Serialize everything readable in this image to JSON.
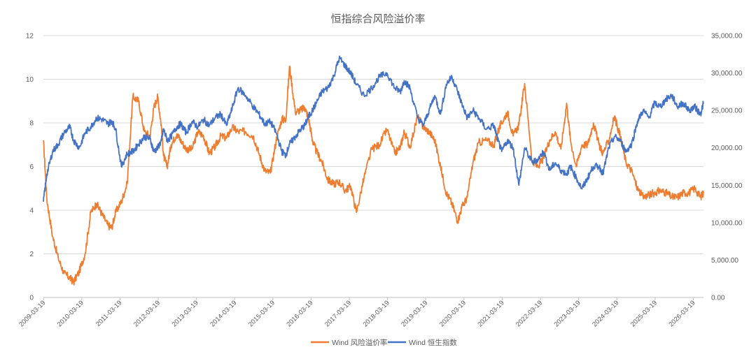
{
  "chart_data": {
    "type": "line",
    "title": "恒指综合风险溢价率",
    "y_left": {
      "min": 0,
      "max": 12,
      "ticks": [
        "0",
        "2",
        "4",
        "6",
        "8",
        "10",
        "12"
      ]
    },
    "y_right": {
      "min": 0,
      "max": 35000,
      "ticks": [
        "0.00",
        "5,000.00",
        "10,000.00",
        "15,000.00",
        "20,000.00",
        "25,000.00",
        "30,000.00",
        "35,000.00"
      ]
    },
    "x_ticks": [
      "2009-03-19",
      "2010-03-19",
      "2011-03-19",
      "2012-03-19",
      "2013-03-19",
      "2014-03-19",
      "2015-03-19",
      "2016-03-19",
      "2017-03-19",
      "2018-03-19",
      "2019-03-19",
      "2020-03-19",
      "2021-03-19",
      "2022-03-19",
      "2023-03-19",
      "2024-03-19",
      "2025-03-19",
      "2026-03-19"
    ],
    "x_range": [
      2009.21,
      2026.48
    ],
    "legend_position": "bottom",
    "grid": true,
    "series": [
      {
        "name": "Wind 风险溢价率",
        "axis": "left",
        "color": "#ED7D31",
        "x": [
          2009.21,
          2009.3,
          2009.45,
          2009.6,
          2009.75,
          2009.9,
          2010.0,
          2010.15,
          2010.3,
          2010.45,
          2010.6,
          2010.75,
          2010.9,
          2011.0,
          2011.1,
          2011.25,
          2011.4,
          2011.55,
          2011.7,
          2011.85,
          2012.0,
          2012.1,
          2012.2,
          2012.3,
          2012.35,
          2012.45,
          2012.55,
          2012.7,
          2012.8,
          2012.95,
          2013.1,
          2013.25,
          2013.4,
          2013.55,
          2013.7,
          2013.85,
          2014.0,
          2014.15,
          2014.3,
          2014.5,
          2014.7,
          2014.85,
          2015.0,
          2015.15,
          2015.3,
          2015.45,
          2015.55,
          2015.65,
          2015.8,
          2015.95,
          2016.05,
          2016.15,
          2016.25,
          2016.35,
          2016.5,
          2016.65,
          2016.8,
          2016.95,
          2017.1,
          2017.25,
          2017.4,
          2017.6,
          2017.8,
          2018.0,
          2018.2,
          2018.4,
          2018.55,
          2018.65,
          2018.8,
          2019.0,
          2019.15,
          2019.3,
          2019.45,
          2019.6,
          2019.75,
          2019.9,
          2020.05,
          2020.15,
          2020.3,
          2020.45,
          2020.6,
          2020.8,
          2021.0,
          2021.1,
          2021.2,
          2021.35,
          2021.5,
          2021.65,
          2021.8,
          2022.0,
          2022.15,
          2022.3,
          2022.45,
          2022.6,
          2022.75,
          2022.9,
          2023.0,
          2023.15,
          2023.3,
          2023.45,
          2023.6,
          2023.75,
          2023.85,
          2024.0,
          2024.15,
          2024.3,
          2024.45,
          2024.6,
          2024.75,
          2024.9,
          2025.05,
          2025.2,
          2025.35,
          2025.5,
          2025.65,
          2025.8,
          2025.95,
          2026.1,
          2026.25,
          2026.4,
          2026.48
        ],
        "y": [
          7.2,
          4.5,
          2.8,
          1.8,
          1.1,
          0.9,
          0.7,
          1.2,
          2.0,
          3.9,
          4.3,
          3.8,
          3.3,
          3.2,
          3.9,
          4.4,
          5.2,
          9.2,
          9.0,
          7.6,
          7.4,
          8.7,
          9.2,
          7.8,
          6.5,
          6.0,
          7.0,
          7.5,
          7.2,
          6.8,
          6.8,
          7.6,
          7.4,
          6.6,
          6.9,
          7.4,
          7.3,
          7.8,
          7.6,
          7.6,
          7.4,
          6.6,
          5.8,
          5.7,
          7.2,
          8.2,
          8.1,
          10.6,
          8.5,
          8.6,
          8.7,
          8.2,
          7.2,
          6.7,
          6.2,
          5.4,
          5.2,
          5.3,
          4.9,
          5.1,
          3.9,
          5.5,
          6.8,
          7.0,
          7.7,
          6.6,
          6.9,
          7.6,
          6.9,
          8.3,
          7.8,
          7.6,
          7.2,
          6.0,
          4.8,
          4.3,
          3.5,
          4.1,
          4.6,
          6.2,
          7.1,
          7.2,
          7.0,
          7.6,
          8.0,
          8.5,
          7.4,
          7.9,
          9.8,
          6.2,
          6.0,
          6.4,
          7.2,
          7.6,
          6.8,
          8.9,
          7.2,
          6.0,
          7.0,
          7.0,
          8.0,
          7.0,
          6.6,
          7.2,
          8.3,
          7.4,
          6.2,
          5.8,
          5.0,
          4.6,
          4.7,
          4.8,
          4.9,
          4.8,
          4.6,
          4.6,
          4.8,
          4.8,
          5.0,
          4.6,
          4.8
        ]
      },
      {
        "name": "Wind 恒生指数",
        "axis": "right",
        "color": "#4472C4",
        "x": [
          2009.21,
          2009.3,
          2009.45,
          2009.6,
          2009.75,
          2009.9,
          2010.0,
          2010.15,
          2010.3,
          2010.45,
          2010.6,
          2010.75,
          2010.9,
          2011.0,
          2011.1,
          2011.25,
          2011.4,
          2011.55,
          2011.7,
          2011.85,
          2012.0,
          2012.1,
          2012.2,
          2012.3,
          2012.35,
          2012.45,
          2012.55,
          2012.7,
          2012.8,
          2012.95,
          2013.1,
          2013.25,
          2013.4,
          2013.55,
          2013.7,
          2013.85,
          2014.0,
          2014.15,
          2014.3,
          2014.5,
          2014.7,
          2014.85,
          2015.0,
          2015.15,
          2015.3,
          2015.45,
          2015.55,
          2015.65,
          2015.8,
          2015.95,
          2016.05,
          2016.15,
          2016.25,
          2016.35,
          2016.5,
          2016.65,
          2016.8,
          2016.95,
          2017.1,
          2017.25,
          2017.4,
          2017.6,
          2017.8,
          2018.0,
          2018.2,
          2018.4,
          2018.55,
          2018.65,
          2018.8,
          2019.0,
          2019.15,
          2019.3,
          2019.45,
          2019.6,
          2019.75,
          2019.9,
          2020.05,
          2020.15,
          2020.3,
          2020.45,
          2020.6,
          2020.8,
          2021.0,
          2021.1,
          2021.2,
          2021.35,
          2021.5,
          2021.65,
          2021.8,
          2022.0,
          2022.15,
          2022.3,
          2022.45,
          2022.6,
          2022.75,
          2022.9,
          2023.0,
          2023.15,
          2023.3,
          2023.45,
          2023.6,
          2023.75,
          2023.85,
          2024.0,
          2024.15,
          2024.3,
          2024.45,
          2024.6,
          2024.75,
          2024.9,
          2025.05,
          2025.2,
          2025.35,
          2025.5,
          2025.65,
          2025.8,
          2025.95,
          2026.1,
          2026.25,
          2026.4,
          2026.48
        ],
        "y": [
          12800,
          16500,
          19500,
          20500,
          22000,
          22800,
          21000,
          20000,
          22000,
          22800,
          24000,
          23800,
          23200,
          23600,
          22500,
          17500,
          19200,
          19500,
          20500,
          21500,
          21200,
          19500,
          20000,
          21000,
          22500,
          21000,
          21500,
          22800,
          23200,
          22000,
          23500,
          22800,
          23800,
          23000,
          24000,
          24500,
          23000,
          25300,
          28000,
          27000,
          25500,
          24500,
          23200,
          23500,
          22000,
          19500,
          19000,
          20500,
          21500,
          22500,
          23000,
          24200,
          25000,
          26000,
          27500,
          28000,
          29500,
          32000,
          31000,
          30000,
          28500,
          27000,
          28000,
          29500,
          30000,
          28000,
          27500,
          29000,
          28000,
          24000,
          23000,
          25000,
          27000,
          24500,
          28500,
          29500,
          27500,
          26000,
          24000,
          25000,
          24000,
          22500,
          23000,
          21000,
          19500,
          21000,
          20000,
          15000,
          20000,
          18000,
          18500,
          19500,
          17000,
          18000,
          17000,
          16500,
          17500,
          16000,
          14500,
          16000,
          17500,
          17500,
          16500,
          20000,
          21500,
          21000,
          19500,
          20500,
          23500,
          25000,
          24000,
          26000,
          25500,
          26500,
          27000,
          25500,
          26000,
          25000,
          25500,
          24500,
          26000
        ]
      }
    ]
  }
}
